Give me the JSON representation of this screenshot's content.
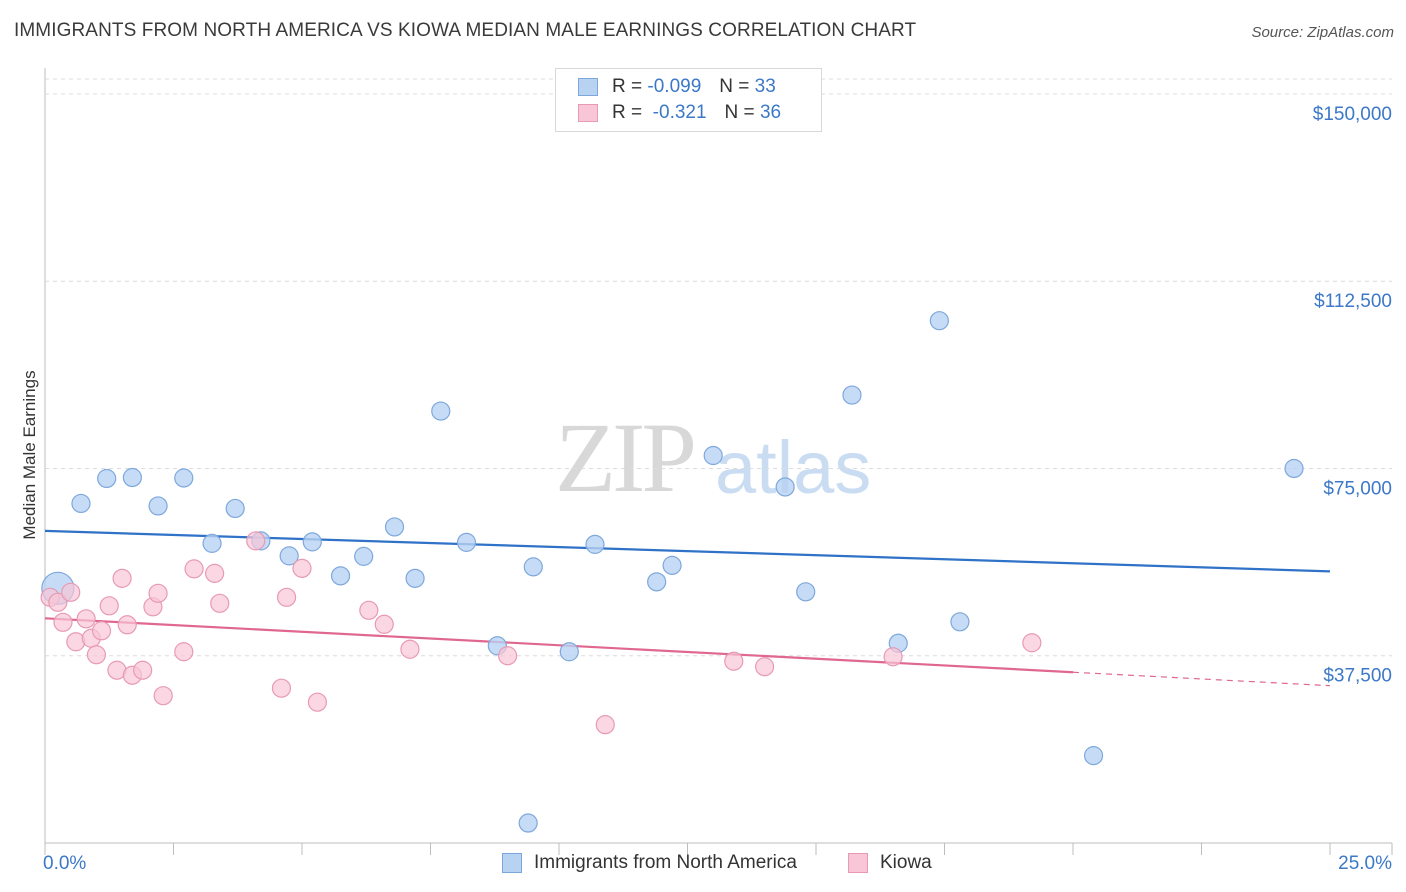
{
  "header": {
    "title": "IMMIGRANTS FROM NORTH AMERICA VS KIOWA MEDIAN MALE EARNINGS CORRELATION CHART",
    "source": "Source: ZipAtlas.com"
  },
  "watermark": {
    "zip": "ZIP",
    "atlas": "atlas"
  },
  "legend_top": {
    "rows": [
      {
        "r_label": "R =",
        "r_value": "-0.099",
        "n_label": "N =",
        "n_value": "33"
      },
      {
        "r_label": "R =",
        "r_value": "-0.321",
        "n_label": "N =",
        "n_value": "36"
      }
    ]
  },
  "legend_bottom": {
    "items": [
      {
        "label": "Immigrants from North America"
      },
      {
        "label": "Kiowa"
      }
    ]
  },
  "colors": {
    "blue_fill": "#b8d2f2",
    "blue_stroke": "#7ea8dc",
    "blue_line": "#2f72c8",
    "pink_fill": "#f8c6d6",
    "pink_stroke": "#e89ab4",
    "pink_line": "#e0678f",
    "tick_text": "#3c78c8",
    "grid": "#dcdcdc"
  },
  "chart_data": {
    "type": "scatter",
    "title": "IMMIGRANTS FROM NORTH AMERICA VS KIOWA MEDIAN MALE EARNINGS CORRELATION CHART",
    "xlabel": "",
    "ylabel": "Median Male Earnings",
    "xlim": [
      0,
      25
    ],
    "ylim": [
      0,
      153000
    ],
    "x_tick_labels": [
      "0.0%",
      "25.0%"
    ],
    "y_ticks": [
      37500,
      75000,
      112500,
      150000
    ],
    "y_tick_labels": [
      "$37,500",
      "$75,000",
      "$112,500",
      "$150,000"
    ],
    "grid": "horizontal dashed",
    "legend_position": "top-center",
    "series": [
      {
        "name": "Immigrants from North America",
        "r": -0.099,
        "n": 33,
        "trend": {
          "x": [
            0,
            25
          ],
          "y": [
            62500,
            54400
          ]
        },
        "points": [
          {
            "x": 0.25,
            "y": 51000,
            "big": true
          },
          {
            "x": 0.7,
            "y": 68000
          },
          {
            "x": 1.2,
            "y": 73000
          },
          {
            "x": 1.7,
            "y": 73200
          },
          {
            "x": 2.2,
            "y": 67500
          },
          {
            "x": 2.7,
            "y": 73100
          },
          {
            "x": 3.25,
            "y": 60000
          },
          {
            "x": 3.7,
            "y": 67000
          },
          {
            "x": 4.2,
            "y": 60500
          },
          {
            "x": 4.75,
            "y": 57500
          },
          {
            "x": 5.2,
            "y": 60300
          },
          {
            "x": 5.75,
            "y": 53500
          },
          {
            "x": 6.2,
            "y": 57400
          },
          {
            "x": 6.8,
            "y": 63300
          },
          {
            "x": 7.2,
            "y": 53000
          },
          {
            "x": 7.7,
            "y": 86500
          },
          {
            "x": 8.2,
            "y": 60200
          },
          {
            "x": 8.8,
            "y": 39500
          },
          {
            "x": 9.5,
            "y": 55300
          },
          {
            "x": 9.4,
            "y": 4000
          },
          {
            "x": 10.2,
            "y": 38300
          },
          {
            "x": 10.7,
            "y": 59800
          },
          {
            "x": 11.9,
            "y": 52300
          },
          {
            "x": 12.2,
            "y": 55600
          },
          {
            "x": 13.0,
            "y": 77600
          },
          {
            "x": 14.4,
            "y": 71300
          },
          {
            "x": 14.8,
            "y": 50300
          },
          {
            "x": 15.7,
            "y": 89700
          },
          {
            "x": 16.6,
            "y": 40000
          },
          {
            "x": 17.4,
            "y": 104600
          },
          {
            "x": 17.8,
            "y": 44300
          },
          {
            "x": 20.4,
            "y": 17500
          },
          {
            "x": 24.3,
            "y": 75000
          }
        ]
      },
      {
        "name": "Kiowa",
        "r": -0.321,
        "n": 36,
        "trend": {
          "x": [
            0,
            20
          ],
          "y": [
            45000,
            34200
          ]
        },
        "trend_dashed": {
          "x": [
            20,
            25
          ],
          "y": [
            34200,
            31500
          ]
        },
        "points": [
          {
            "x": 0.1,
            "y": 49200
          },
          {
            "x": 0.25,
            "y": 48200
          },
          {
            "x": 0.35,
            "y": 44200
          },
          {
            "x": 0.5,
            "y": 50200
          },
          {
            "x": 0.6,
            "y": 40300
          },
          {
            "x": 0.8,
            "y": 44900
          },
          {
            "x": 0.9,
            "y": 41000
          },
          {
            "x": 1.0,
            "y": 37700
          },
          {
            "x": 1.1,
            "y": 42500
          },
          {
            "x": 1.25,
            "y": 47500
          },
          {
            "x": 1.4,
            "y": 34600
          },
          {
            "x": 1.5,
            "y": 53000
          },
          {
            "x": 1.6,
            "y": 43700
          },
          {
            "x": 1.7,
            "y": 33600
          },
          {
            "x": 1.9,
            "y": 34600
          },
          {
            "x": 2.1,
            "y": 47300
          },
          {
            "x": 2.2,
            "y": 50000
          },
          {
            "x": 2.3,
            "y": 29500
          },
          {
            "x": 2.7,
            "y": 38300
          },
          {
            "x": 2.9,
            "y": 54900
          },
          {
            "x": 3.3,
            "y": 54000
          },
          {
            "x": 3.4,
            "y": 48000
          },
          {
            "x": 4.1,
            "y": 60500
          },
          {
            "x": 4.6,
            "y": 31000
          },
          {
            "x": 4.7,
            "y": 49200
          },
          {
            "x": 5.0,
            "y": 55000
          },
          {
            "x": 5.3,
            "y": 28200
          },
          {
            "x": 6.3,
            "y": 46600
          },
          {
            "x": 6.6,
            "y": 43800
          },
          {
            "x": 7.1,
            "y": 38800
          },
          {
            "x": 9.0,
            "y": 37500
          },
          {
            "x": 10.9,
            "y": 23700
          },
          {
            "x": 13.4,
            "y": 36400
          },
          {
            "x": 14.0,
            "y": 35300
          },
          {
            "x": 16.5,
            "y": 37300
          },
          {
            "x": 19.2,
            "y": 40100
          }
        ]
      }
    ]
  }
}
